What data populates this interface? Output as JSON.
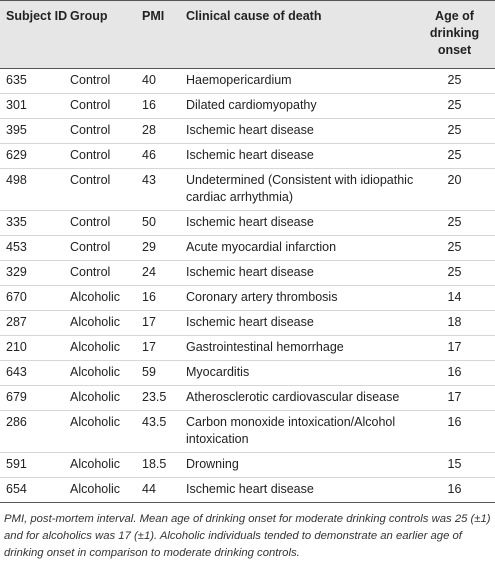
{
  "table": {
    "headers": {
      "subject_id": "Subject ID",
      "group": "Group",
      "pmi": "PMI",
      "cause": "Clinical cause of death",
      "onset": "Age of drinking onset"
    },
    "rows": [
      {
        "id": "635",
        "group": "Control",
        "pmi": "40",
        "cause": "Haemopericardium",
        "onset": "25"
      },
      {
        "id": "301",
        "group": "Control",
        "pmi": "16",
        "cause": "Dilated cardiomyopathy",
        "onset": "25"
      },
      {
        "id": "395",
        "group": "Control",
        "pmi": "28",
        "cause": "Ischemic heart disease",
        "onset": "25"
      },
      {
        "id": "629",
        "group": "Control",
        "pmi": "46",
        "cause": "Ischemic heart disease",
        "onset": "25"
      },
      {
        "id": "498",
        "group": "Control",
        "pmi": "43",
        "cause": "Undetermined (Consistent with idiopathic cardiac arrhythmia)",
        "onset": "20"
      },
      {
        "id": "335",
        "group": "Control",
        "pmi": "50",
        "cause": "Ischemic heart disease",
        "onset": "25"
      },
      {
        "id": "453",
        "group": "Control",
        "pmi": "29",
        "cause": "Acute myocardial infarction",
        "onset": "25"
      },
      {
        "id": "329",
        "group": "Control",
        "pmi": "24",
        "cause": "Ischemic heart disease",
        "onset": "25"
      },
      {
        "id": "670",
        "group": "Alcoholic",
        "pmi": "16",
        "cause": "Coronary artery thrombosis",
        "onset": "14"
      },
      {
        "id": "287",
        "group": "Alcoholic",
        "pmi": "17",
        "cause": "Ischemic heart disease",
        "onset": "18"
      },
      {
        "id": "210",
        "group": "Alcoholic",
        "pmi": "17",
        "cause": "Gastrointestinal hemorrhage",
        "onset": "17"
      },
      {
        "id": "643",
        "group": "Alcoholic",
        "pmi": "59",
        "cause": "Myocarditis",
        "onset": "16"
      },
      {
        "id": "679",
        "group": "Alcoholic",
        "pmi": "23.5",
        "cause": "Atherosclerotic cardiovascular disease",
        "onset": "17"
      },
      {
        "id": "286",
        "group": "Alcoholic",
        "pmi": "43.5",
        "cause": "Carbon monoxide intoxication/Alcohol intoxication",
        "onset": "16"
      },
      {
        "id": "591",
        "group": "Alcoholic",
        "pmi": "18.5",
        "cause": "Drowning",
        "onset": "15"
      },
      {
        "id": "654",
        "group": "Alcoholic",
        "pmi": "44",
        "cause": "Ischemic heart disease",
        "onset": "16"
      }
    ]
  },
  "footnote": "PMI, post-mortem interval. Mean age of drinking onset for moderate drinking controls was 25 (±1) and for alcoholics was 17 (±1). Alcoholic individuals tended to demonstrate an earlier age of drinking onset in comparison to moderate drinking controls."
}
